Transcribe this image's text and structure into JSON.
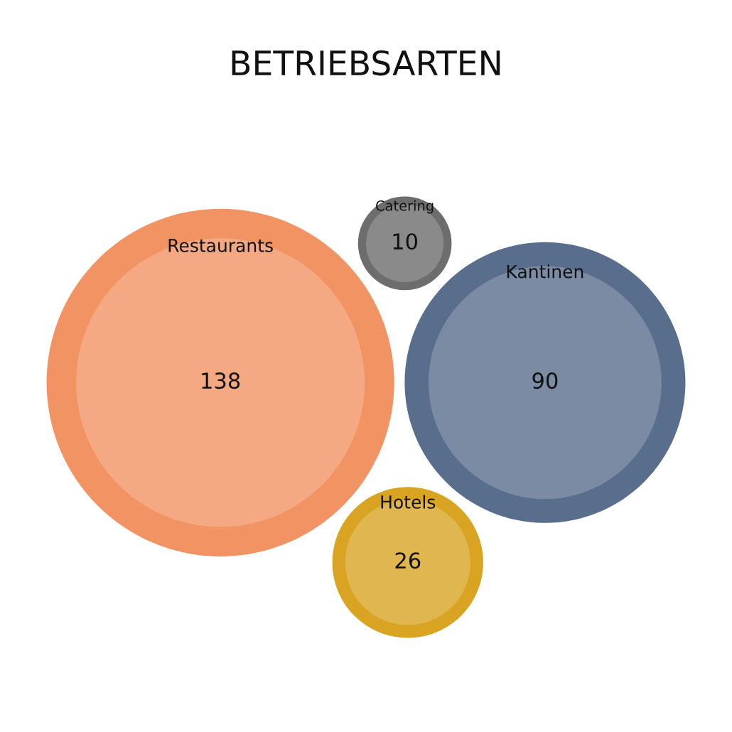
{
  "chart_data": {
    "type": "other",
    "title": "BETRIEBSARTEN",
    "categories": [
      "Restaurants",
      "Kantinen",
      "Hotels",
      "Catering"
    ],
    "values": [
      138,
      90,
      26,
      10
    ],
    "colors": [
      "#f4a982",
      "#7a8ba3",
      "#e0b64e",
      "#8a8a8a"
    ],
    "data_labels": true
  }
}
